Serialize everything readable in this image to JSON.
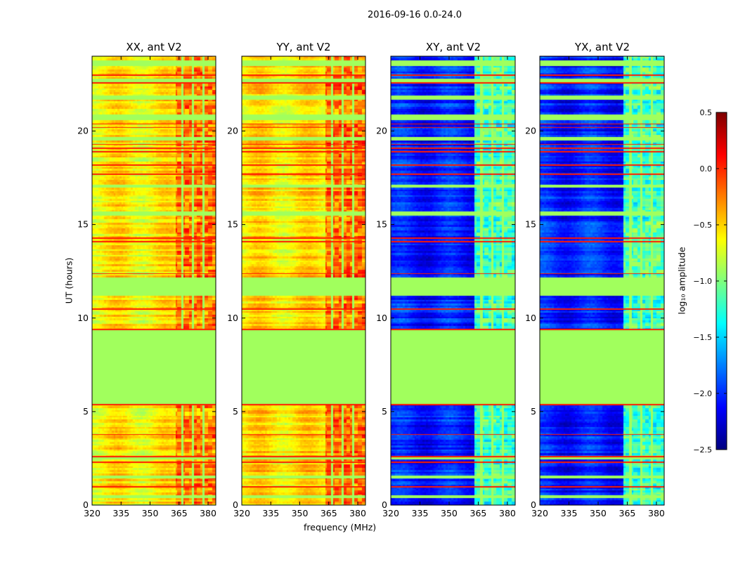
{
  "suptitle": "2016-09-16 0.0-24.0",
  "xlabel": "frequency (MHz)",
  "ylabel": "UT (hours)",
  "colorbar": {
    "label": "log₁₀ amplitude",
    "range": [
      -2.5,
      0.5
    ],
    "ticks": [
      "0.5",
      "0.0",
      "−0.5",
      "−1.0",
      "−1.5",
      "−2.0",
      "−2.5"
    ],
    "tick_values": [
      0.5,
      0.0,
      -0.5,
      -1.0,
      -1.5,
      -2.0,
      -2.5
    ],
    "colormap": "jet"
  },
  "chart_data": {
    "type": "heatmap",
    "xlim": [
      320,
      384
    ],
    "ylim": [
      0,
      24
    ],
    "xticks": [
      "320",
      "335",
      "350",
      "365",
      "380"
    ],
    "xtick_values": [
      320,
      335,
      350,
      365,
      380
    ],
    "yticks": [
      "0",
      "5",
      "10",
      "15",
      "20"
    ],
    "ytick_values": [
      0,
      5,
      10,
      15,
      20
    ],
    "flag_value": -0.9,
    "flagged_bands_hours": [
      [
        23.5,
        23.8
      ],
      [
        22.55,
        22.8
      ],
      [
        21.7,
        21.9
      ],
      [
        20.6,
        20.9
      ],
      [
        19.5,
        19.7
      ],
      [
        17.0,
        17.15
      ],
      [
        15.5,
        15.7
      ],
      [
        11.2,
        12.2
      ],
      [
        5.4,
        9.36
      ],
      [
        2.45,
        2.65
      ],
      [
        1.45,
        1.6
      ],
      [
        0.4,
        0.55
      ]
    ],
    "red_lines_hours": [
      23.0,
      22.6,
      20.4,
      20.2,
      19.3,
      19.1,
      18.9,
      18.2,
      17.7,
      14.3,
      14.1,
      12.4,
      10.5,
      9.4,
      5.4,
      3.8,
      2.6,
      2.3,
      1.0
    ],
    "rfi_band_mhz": [
      363,
      384
    ],
    "flagged_channels_mhz": [
      366.5,
      372,
      377.5
    ],
    "panels": [
      {
        "title": "XX, ant V2",
        "base": -0.6,
        "rfi_level": -0.25
      },
      {
        "title": "YY, ant V2",
        "base": -0.55,
        "rfi_level": -0.2
      },
      {
        "title": "XY, ant V2",
        "base": -2.05,
        "rfi_level": -1.2
      },
      {
        "title": "YX, ant V2",
        "base": -2.05,
        "rfi_level": -1.2
      }
    ]
  }
}
